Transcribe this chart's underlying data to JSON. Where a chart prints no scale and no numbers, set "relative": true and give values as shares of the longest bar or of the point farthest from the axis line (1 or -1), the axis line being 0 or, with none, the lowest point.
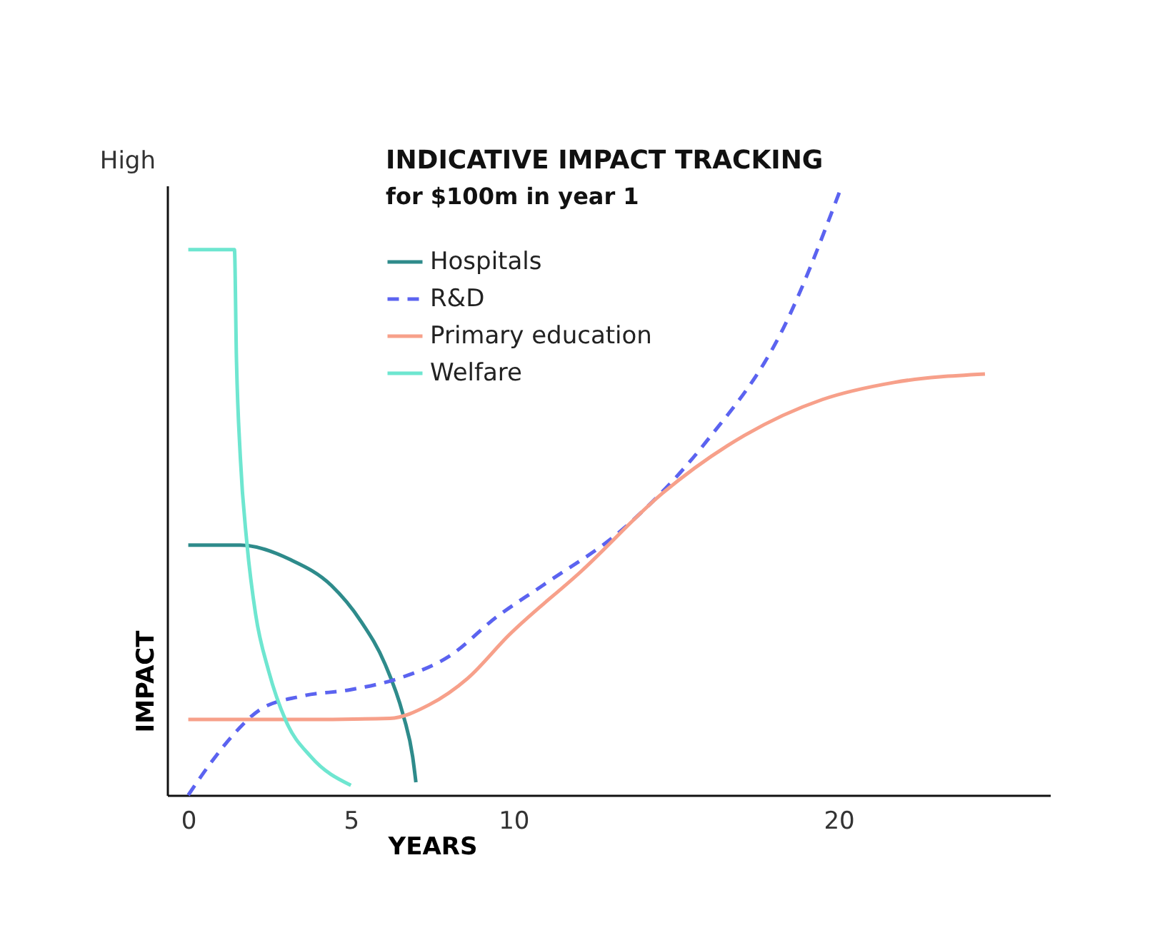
{
  "chart_data": {
    "type": "line",
    "title": "INDICATIVE IMPACT TRACKING",
    "subtitle": "for $100m in year 1",
    "xlabel": "YEARS",
    "ylabel": "IMPACT",
    "annotations": [
      "High"
    ],
    "relative": true,
    "xlim": [
      -0.65,
      26.5
    ],
    "xticks": [
      0,
      5,
      10,
      20
    ],
    "grid": false,
    "legend": "top",
    "tick_labels": "x",
    "series": [
      {
        "name": "Hospitals",
        "color": "#2e8b8b",
        "line_style": "solid",
        "x": [
          0,
          1.6,
          3.15,
          4.4,
          5.3,
          6.05,
          6.6,
          6.9,
          7.0
        ],
        "values": [
          0.41,
          0.41,
          0.386,
          0.344,
          0.286,
          0.215,
          0.133,
          0.063,
          0.021
        ]
      },
      {
        "name": "R&D",
        "color": "#5b63f0",
        "line_style": "dashed",
        "x": [
          0,
          0.68,
          1.45,
          2.2,
          3.46,
          5,
          6.5,
          8.0,
          9.5,
          10.9,
          13.4,
          15.9,
          18.3,
          20.1
        ],
        "values": [
          0,
          0.052,
          0.103,
          0.14,
          0.162,
          0.173,
          0.192,
          0.227,
          0.293,
          0.344,
          0.438,
          0.578,
          0.766,
          1.0
        ]
      },
      {
        "name": "Primary education",
        "color": "#f7a08a",
        "line_style": "solid",
        "x": [
          0,
          3.46,
          6.2,
          7.4,
          8.6,
          9.85,
          12.1,
          14.6,
          17.1,
          19.5,
          21.7,
          24.5
        ],
        "values": [
          0.124,
          0.124,
          0.126,
          0.148,
          0.192,
          0.262,
          0.368,
          0.496,
          0.59,
          0.649,
          0.677,
          0.691
        ]
      },
      {
        "name": "Welfare",
        "color": "#6ee6d0",
        "line_style": "solid",
        "x": [
          0,
          1.42,
          1.48,
          1.6,
          1.8,
          2.07,
          2.47,
          3.0,
          3.77,
          5.0
        ],
        "values": [
          0.895,
          0.895,
          0.719,
          0.555,
          0.415,
          0.297,
          0.204,
          0.122,
          0.063,
          0.016
        ]
      }
    ]
  }
}
